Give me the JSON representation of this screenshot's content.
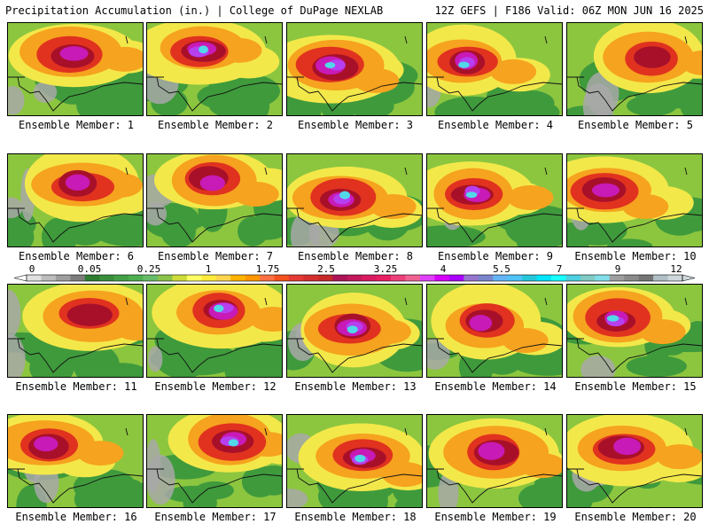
{
  "header": {
    "title": "Precipitation Accumulation (in.) | College of DuPage NEXLAB",
    "run_info": "12Z GEFS | F186 Valid: 06Z MON JUN 16 2025"
  },
  "members": [
    {
      "label": "Ensemble Member: 1",
      "peak": 5.5
    },
    {
      "label": "Ensemble Member: 2",
      "peak": 7
    },
    {
      "label": "Ensemble Member: 3",
      "peak": 7
    },
    {
      "label": "Ensemble Member: 4",
      "peak": 7
    },
    {
      "label": "Ensemble Member: 5",
      "peak": 4
    },
    {
      "label": "Ensemble Member: 6",
      "peak": 5.5
    },
    {
      "label": "Ensemble Member: 7",
      "peak": 5.5
    },
    {
      "label": "Ensemble Member: 8",
      "peak": 7
    },
    {
      "label": "Ensemble Member: 9",
      "peak": 7
    },
    {
      "label": "Ensemble Member: 10",
      "peak": 5.5
    },
    {
      "label": "Ensemble Member: 11",
      "peak": 4
    },
    {
      "label": "Ensemble Member: 12",
      "peak": 7
    },
    {
      "label": "Ensemble Member: 13",
      "peak": 7
    },
    {
      "label": "Ensemble Member: 14",
      "peak": 5.5
    },
    {
      "label": "Ensemble Member: 15",
      "peak": 7
    },
    {
      "label": "Ensemble Member: 16",
      "peak": 5.5
    },
    {
      "label": "Ensemble Member: 17",
      "peak": 7
    },
    {
      "label": "Ensemble Member: 18",
      "peak": 7
    },
    {
      "label": "Ensemble Member: 19",
      "peak": 5.5
    },
    {
      "label": "Ensemble Member: 20",
      "peak": 5.5
    }
  ],
  "legend": {
    "tick_labels": [
      "0",
      "0.05",
      "0.25",
      "1",
      "1.75",
      "2.5",
      "3.25",
      "4",
      "5.5",
      "7",
      "9",
      "12"
    ],
    "colors": [
      "#e0e0e0",
      "#bdbdbd",
      "#9e9e9e",
      "#7d7d7d",
      "#2e7d32",
      "#388e3c",
      "#43a047",
      "#4caf50",
      "#66bb6a",
      "#8bc34a",
      "#cddc39",
      "#ffff66",
      "#ffeb3b",
      "#ffd54f",
      "#ffb300",
      "#ff9800",
      "#ff7043",
      "#f4511e",
      "#e53935",
      "#d32f2f",
      "#c62828",
      "#ad1457",
      "#c2185b",
      "#d81b60",
      "#e91e63",
      "#ec407a",
      "#f06292",
      "#e040fb",
      "#d500f9",
      "#aa00ff",
      "#9575cd",
      "#7986cb",
      "#64b5f6",
      "#4fc3f7",
      "#26c6da",
      "#00e5ff",
      "#18ffff",
      "#4dd0e1",
      "#80cbc4",
      "#80deea",
      "#9e9e9e",
      "#8a8a8a",
      "#757575",
      "#b0bec5",
      "#cfd8dc"
    ]
  }
}
